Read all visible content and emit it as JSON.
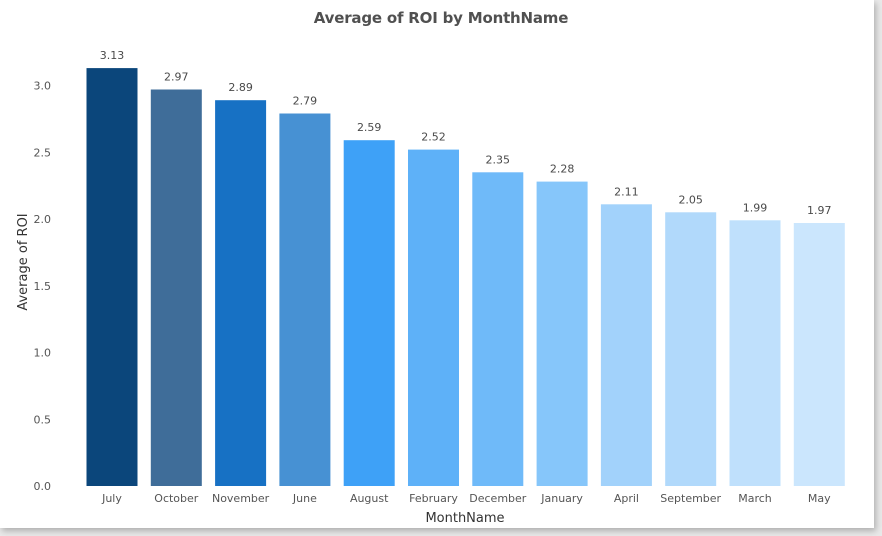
{
  "chart_data": {
    "type": "bar",
    "title": "Average of ROI by MonthName",
    "xlabel": "MonthName",
    "ylabel": "Average of ROI",
    "categories": [
      "July",
      "October",
      "November",
      "June",
      "August",
      "February",
      "December",
      "January",
      "April",
      "September",
      "March",
      "May"
    ],
    "series": [
      {
        "values": [
          3.13,
          2.97,
          2.89,
          2.79,
          2.59,
          2.52,
          2.35,
          2.28,
          2.11,
          2.05,
          1.99,
          1.97
        ]
      }
    ],
    "data_labels": [
      "3.13",
      "2.97",
      "2.89",
      "2.79",
      "2.59",
      "2.52",
      "2.35",
      "2.28",
      "2.11",
      "2.05",
      "1.99",
      "1.97"
    ],
    "yticks": [
      "0.0",
      "0.5",
      "1.0",
      "1.5",
      "2.0",
      "2.5",
      "3.0"
    ],
    "ylim": [
      0,
      3.3
    ],
    "grid": false,
    "legend": "none",
    "bar_colors": [
      "#0b467b",
      "#3f6d99",
      "#1771c4",
      "#4791d3",
      "#3ea1f7",
      "#5eb1f8",
      "#6fbaf9",
      "#86c6fa",
      "#a2d2fb",
      "#b1d9fb",
      "#bfe0fc",
      "#cbe6fd"
    ],
    "axis_text_color": "#555555",
    "label_text_color": "#4a4a4a"
  }
}
